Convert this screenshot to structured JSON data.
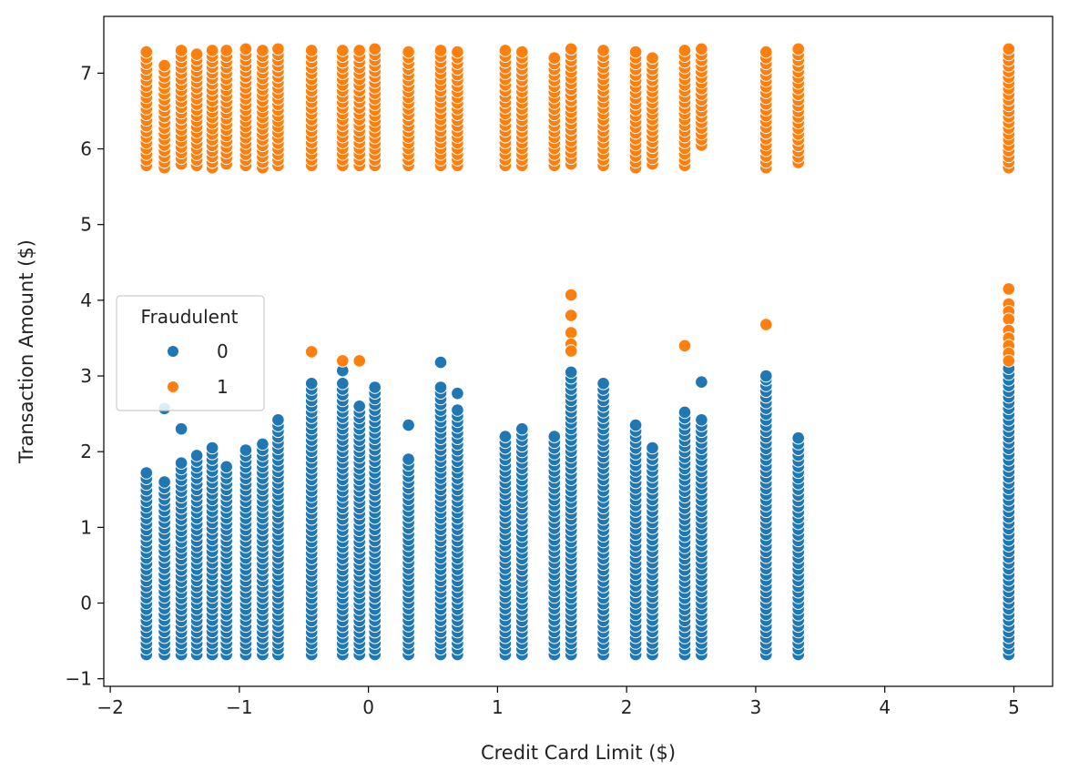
{
  "chart_data": {
    "type": "scatter",
    "xlabel": "Credit Card Limit ($)",
    "ylabel": "Transaction Amount ($)",
    "xlim": [
      -2.05,
      5.3
    ],
    "ylim": [
      -1.1,
      7.75
    ],
    "xticks": [
      -2,
      -1,
      0,
      1,
      2,
      3,
      4,
      5
    ],
    "yticks": [
      -1,
      0,
      1,
      2,
      3,
      4,
      5,
      6,
      7
    ],
    "x_tick_labels": [
      "−2",
      "−1",
      "0",
      "1",
      "2",
      "3",
      "4",
      "5"
    ],
    "y_tick_labels": [
      "−1",
      "0",
      "1",
      "2",
      "3",
      "4",
      "5",
      "6",
      "7"
    ],
    "grid": false,
    "legend": {
      "title": "Fraudulent",
      "placement": "center-left",
      "entries": [
        {
          "label": "0",
          "color": "#1f77b4"
        },
        {
          "label": "1",
          "color": "#ff7f0e"
        }
      ]
    },
    "columns": [
      {
        "x": -1.72,
        "blue": [
          -0.68,
          1.72
        ],
        "orange": [
          5.78,
          7.28
        ]
      },
      {
        "x": -1.58,
        "blue": [
          -0.68,
          1.6
        ],
        "orange": [
          5.75,
          7.1
        ]
      },
      {
        "x": -1.45,
        "blue": [
          -0.68,
          1.85
        ],
        "orange": [
          5.8,
          7.3
        ]
      },
      {
        "x": -1.33,
        "blue": [
          -0.68,
          1.95
        ],
        "orange": [
          5.78,
          7.25
        ]
      },
      {
        "x": -1.21,
        "blue": [
          -0.68,
          2.05
        ],
        "orange": [
          5.75,
          7.3
        ]
      },
      {
        "x": -1.1,
        "blue": [
          -0.68,
          1.8
        ],
        "orange": [
          5.8,
          7.3
        ]
      },
      {
        "x": -0.95,
        "blue": [
          -0.68,
          2.02
        ],
        "orange": [
          5.78,
          7.32
        ]
      },
      {
        "x": -0.82,
        "blue": [
          -0.68,
          2.1
        ],
        "orange": [
          5.75,
          7.3
        ]
      },
      {
        "x": -0.7,
        "blue": [
          -0.68,
          2.42
        ],
        "orange": [
          5.78,
          7.32
        ]
      },
      {
        "x": -0.44,
        "blue": [
          -0.68,
          2.9
        ],
        "orange": [
          5.78,
          7.3
        ]
      },
      {
        "x": -0.2,
        "blue": [
          -0.68,
          2.9
        ],
        "orange": [
          5.78,
          7.3
        ]
      },
      {
        "x": -0.07,
        "blue": [
          -0.68,
          2.6
        ],
        "orange": [
          5.78,
          7.3
        ]
      },
      {
        "x": 0.05,
        "blue": [
          -0.68,
          2.85
        ],
        "orange": [
          5.78,
          7.32
        ]
      },
      {
        "x": 0.31,
        "blue": [
          -0.68,
          1.9
        ],
        "orange": [
          5.78,
          7.28
        ]
      },
      {
        "x": 0.56,
        "blue": [
          -0.68,
          2.85
        ],
        "orange": [
          5.78,
          7.3
        ]
      },
      {
        "x": 0.69,
        "blue": [
          -0.68,
          2.55
        ],
        "orange": [
          5.78,
          7.28
        ]
      },
      {
        "x": 1.06,
        "blue": [
          -0.68,
          2.2
        ],
        "orange": [
          5.78,
          7.3
        ]
      },
      {
        "x": 1.19,
        "blue": [
          -0.68,
          2.3
        ],
        "orange": [
          5.78,
          7.28
        ]
      },
      {
        "x": 1.44,
        "blue": [
          -0.68,
          2.2
        ],
        "orange": [
          5.78,
          7.2
        ]
      },
      {
        "x": 1.57,
        "blue": [
          -0.68,
          3.05
        ],
        "orange": [
          5.8,
          7.32
        ]
      },
      {
        "x": 1.82,
        "blue": [
          -0.68,
          2.9
        ],
        "orange": [
          5.78,
          7.3
        ]
      },
      {
        "x": 2.07,
        "blue": [
          -0.68,
          2.35
        ],
        "orange": [
          5.75,
          7.28
        ]
      },
      {
        "x": 2.2,
        "blue": [
          -0.68,
          2.05
        ],
        "orange": [
          5.8,
          7.2
        ]
      },
      {
        "x": 2.45,
        "blue": [
          -0.68,
          2.52
        ],
        "orange": [
          5.78,
          7.3
        ]
      },
      {
        "x": 2.58,
        "blue": [
          -0.68,
          2.42
        ],
        "orange": [
          6.05,
          7.32
        ]
      },
      {
        "x": 3.08,
        "blue": [
          -0.68,
          2.95
        ],
        "orange": [
          5.75,
          7.28
        ]
      },
      {
        "x": 3.33,
        "blue": [
          -0.68,
          2.18
        ],
        "orange": [
          5.82,
          7.32
        ]
      },
      {
        "x": 4.96,
        "blue": [
          -0.68,
          3.1
        ],
        "orange": [
          5.75,
          7.32
        ]
      }
    ],
    "extra_points": [
      {
        "x": -1.58,
        "y": 2.57,
        "fraudulent": 0
      },
      {
        "x": -1.45,
        "y": 2.3,
        "fraudulent": 0
      },
      {
        "x": -0.2,
        "y": 3.07,
        "fraudulent": 0
      },
      {
        "x": 0.31,
        "y": 2.35,
        "fraudulent": 0
      },
      {
        "x": 0.56,
        "y": 3.18,
        "fraudulent": 0
      },
      {
        "x": 0.69,
        "y": 2.77,
        "fraudulent": 0
      },
      {
        "x": 2.58,
        "y": 2.92,
        "fraudulent": 0
      },
      {
        "x": 3.08,
        "y": 3.0,
        "fraudulent": 0
      },
      {
        "x": -0.44,
        "y": 3.32,
        "fraudulent": 1
      },
      {
        "x": -0.2,
        "y": 3.2,
        "fraudulent": 1
      },
      {
        "x": -0.07,
        "y": 3.2,
        "fraudulent": 1
      },
      {
        "x": 1.57,
        "y": 4.07,
        "fraudulent": 1
      },
      {
        "x": 1.57,
        "y": 3.8,
        "fraudulent": 1
      },
      {
        "x": 1.57,
        "y": 3.57,
        "fraudulent": 1
      },
      {
        "x": 1.57,
        "y": 3.42,
        "fraudulent": 1
      },
      {
        "x": 1.57,
        "y": 3.33,
        "fraudulent": 1
      },
      {
        "x": 2.45,
        "y": 3.4,
        "fraudulent": 1
      },
      {
        "x": 3.08,
        "y": 3.68,
        "fraudulent": 1
      },
      {
        "x": 4.96,
        "y": 4.15,
        "fraudulent": 1
      },
      {
        "x": 4.96,
        "y": 3.95,
        "fraudulent": 1
      },
      {
        "x": 4.96,
        "y": 3.85,
        "fraudulent": 1
      },
      {
        "x": 4.96,
        "y": 3.75,
        "fraudulent": 1
      },
      {
        "x": 4.96,
        "y": 3.6,
        "fraudulent": 1
      },
      {
        "x": 4.96,
        "y": 3.5,
        "fraudulent": 1
      },
      {
        "x": 4.96,
        "y": 3.4,
        "fraudulent": 1
      },
      {
        "x": 4.96,
        "y": 3.3,
        "fraudulent": 1
      },
      {
        "x": 4.96,
        "y": 3.2,
        "fraudulent": 1
      }
    ]
  }
}
